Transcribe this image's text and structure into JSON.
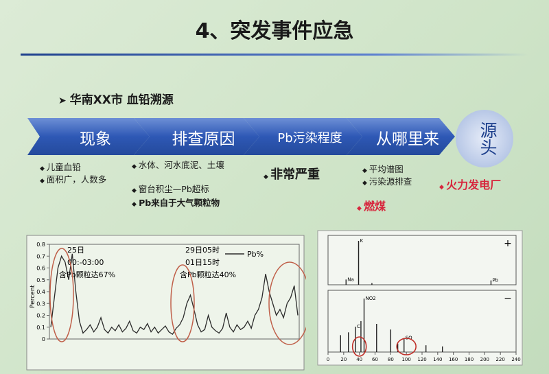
{
  "title": "4、突发事件应急",
  "subtitle": "华南XX市 血铅溯源",
  "steps": [
    {
      "label": "现象",
      "items": [
        {
          "text": "儿童血铅",
          "style": "normal"
        },
        {
          "text": "面积广，人数多",
          "style": "normal"
        }
      ]
    },
    {
      "label": "排查原因",
      "items": [
        {
          "text": "水体、河水底泥、土壤",
          "style": "normal"
        },
        {
          "text": "窗台积尘—Pb超标",
          "style": "normal"
        },
        {
          "text": "Pb来自于大气颗粒物",
          "style": "bold"
        }
      ]
    },
    {
      "label": "Pb污染程度",
      "items": [
        {
          "text": "非常严重",
          "style": "big"
        }
      ]
    },
    {
      "label": "从哪里来",
      "items": [
        {
          "text": "平均谱图",
          "style": "normal"
        },
        {
          "text": "污染源排查",
          "style": "normal"
        },
        {
          "text": "燃煤",
          "style": "red"
        }
      ]
    },
    {
      "label": "源头",
      "items": [
        {
          "text": "火力发电厂",
          "style": "red"
        }
      ]
    }
  ],
  "chart_data": [
    {
      "type": "line",
      "y_label": "Percent",
      "ylim": [
        0,
        0.8
      ],
      "yticks": [
        0,
        0.1,
        0.2,
        0.3,
        0.4,
        0.5,
        0.6,
        0.7,
        0.8
      ],
      "annotations": [
        "25日",
        "00:-03:00",
        "含Pb颗粒达67%",
        "29日05时",
        "01日15时",
        "含Pb颗粒达40%"
      ],
      "series": [
        {
          "name": "Pb%",
          "color": "#2b2b2b",
          "values": [
            0.1,
            0.35,
            0.6,
            0.7,
            0.65,
            0.5,
            0.72,
            0.4,
            0.15,
            0.05,
            0.08,
            0.12,
            0.06,
            0.1,
            0.18,
            0.08,
            0.05,
            0.1,
            0.07,
            0.12,
            0.06,
            0.09,
            0.15,
            0.07,
            0.05,
            0.1,
            0.08,
            0.13,
            0.06,
            0.1,
            0.05,
            0.08,
            0.11,
            0.06,
            0.04,
            0.09,
            0.12,
            0.18,
            0.3,
            0.37,
            0.25,
            0.12,
            0.06,
            0.08,
            0.2,
            0.1,
            0.07,
            0.05,
            0.09,
            0.22,
            0.1,
            0.06,
            0.12,
            0.08,
            0.1,
            0.15,
            0.09,
            0.2,
            0.25,
            0.35,
            0.55,
            0.4,
            0.3,
            0.2,
            0.25,
            0.18,
            0.3,
            0.35,
            0.45,
            0.2
          ]
        }
      ]
    },
    {
      "type": "stem",
      "xlim": [
        0,
        240
      ],
      "xticks": [
        0,
        20,
        40,
        60,
        80,
        100,
        120,
        140,
        160,
        180,
        200,
        220,
        240
      ],
      "ylim": [
        0,
        1
      ],
      "panels": [
        {
          "sign": "+",
          "x": [
            23,
            39,
            56,
            208
          ],
          "values": [
            0.12,
            1,
            0.04,
            0.1
          ],
          "labels": [
            "Na",
            "K",
            null,
            "Pb"
          ]
        },
        {
          "sign": "−",
          "x": [
            16,
            26,
            35,
            42,
            46,
            62,
            80,
            89,
            97,
            125,
            146
          ],
          "values": [
            0.3,
            0.35,
            0.45,
            0.55,
            0.95,
            0.5,
            0.4,
            0.15,
            0.25,
            0.12,
            0.1
          ],
          "labels": [
            null,
            null,
            "Cl",
            null,
            "NO2",
            null,
            null,
            null,
            "SO",
            null,
            null
          ]
        }
      ]
    }
  ]
}
